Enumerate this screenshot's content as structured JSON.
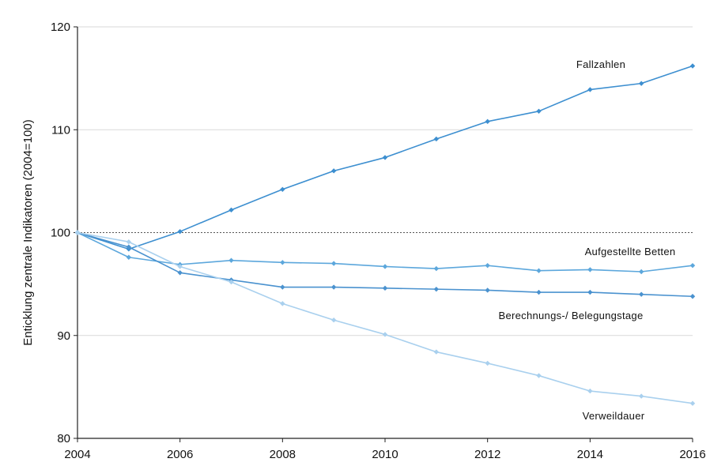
{
  "chart_data": {
    "type": "line",
    "title": "",
    "xlabel": "",
    "ylabel": "Enticklung zentrale Indikatoren (2004=100)",
    "x": [
      2004,
      2005,
      2006,
      2007,
      2008,
      2009,
      2010,
      2011,
      2012,
      2013,
      2014,
      2015,
      2016
    ],
    "xlim": [
      2004,
      2016
    ],
    "ylim": [
      80,
      120
    ],
    "x_ticks": [
      2004,
      2006,
      2008,
      2010,
      2012,
      2014,
      2016
    ],
    "y_ticks": [
      80,
      90,
      100,
      110,
      120
    ],
    "x_tick_labels": [
      "2004",
      "2006",
      "2008",
      "2010",
      "2012",
      "2014",
      "2016"
    ],
    "y_tick_labels": [
      "80",
      "90",
      "100",
      "110",
      "120"
    ],
    "grid": "horizontal",
    "reference_line": 100,
    "legend": "none",
    "series": [
      {
        "name": "Fallzahlen",
        "color": "#3d8fd0",
        "values": [
          100,
          98.4,
          100.1,
          102.2,
          104.2,
          106.0,
          107.3,
          109.1,
          110.8,
          111.8,
          113.9,
          114.5,
          116.2
        ]
      },
      {
        "name": "Aufgestellte Betten",
        "color": "#5ca7dc",
        "values": [
          100,
          97.6,
          96.9,
          97.3,
          97.1,
          97.0,
          96.7,
          96.5,
          96.8,
          96.3,
          96.4,
          96.2,
          96.8
        ]
      },
      {
        "name": "Berechnungs-/ Belegungstage",
        "color": "#4a92cf",
        "values": [
          100,
          98.6,
          96.1,
          95.4,
          94.7,
          94.7,
          94.6,
          94.5,
          94.4,
          94.2,
          94.2,
          94.0,
          93.8
        ]
      },
      {
        "name": "Verweildauer",
        "color": "#a9d0ee",
        "values": [
          100,
          99.1,
          96.7,
          95.2,
          93.1,
          91.5,
          90.1,
          88.4,
          87.3,
          86.1,
          84.6,
          84.1,
          83.4
        ]
      }
    ]
  }
}
